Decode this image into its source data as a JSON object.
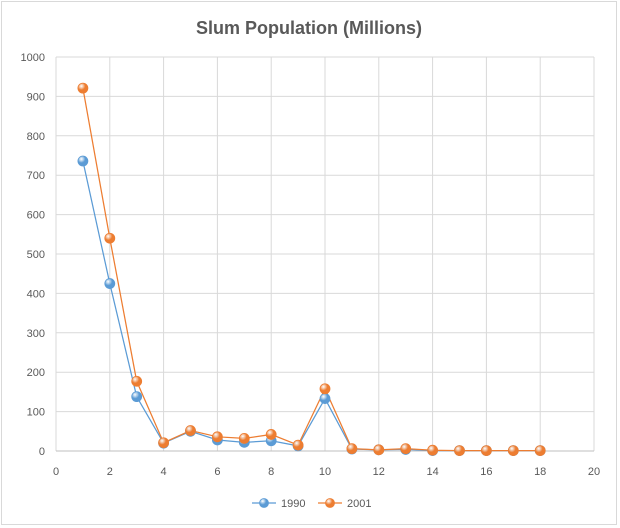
{
  "chart_data": {
    "type": "scatter",
    "title": "Slum Population  (Millions)",
    "xlabel": "",
    "ylabel": "",
    "xlim": [
      0,
      20
    ],
    "ylim": [
      0,
      1000
    ],
    "x_ticks": [
      0,
      2,
      4,
      6,
      8,
      10,
      12,
      14,
      16,
      18,
      20
    ],
    "y_ticks": [
      0,
      100,
      200,
      300,
      400,
      500,
      600,
      700,
      800,
      900,
      1000
    ],
    "grid": true,
    "legend_position": "bottom",
    "x": [
      1,
      2,
      3,
      4,
      5,
      6,
      7,
      8,
      9,
      10,
      11,
      12,
      13,
      14,
      15,
      16,
      17,
      18
    ],
    "series": [
      {
        "name": "1990",
        "color": "#5b9bd5",
        "values": [
          736,
          425,
          138,
          20,
          50,
          28,
          22,
          26,
          13,
          133,
          5,
          3,
          4,
          1,
          1,
          1,
          1,
          1
        ]
      },
      {
        "name": "2001",
        "color": "#ed7d31",
        "values": [
          921,
          540,
          177,
          21,
          52,
          36,
          32,
          42,
          15,
          158,
          6,
          3,
          6,
          2,
          1,
          1,
          1,
          1
        ]
      }
    ]
  }
}
